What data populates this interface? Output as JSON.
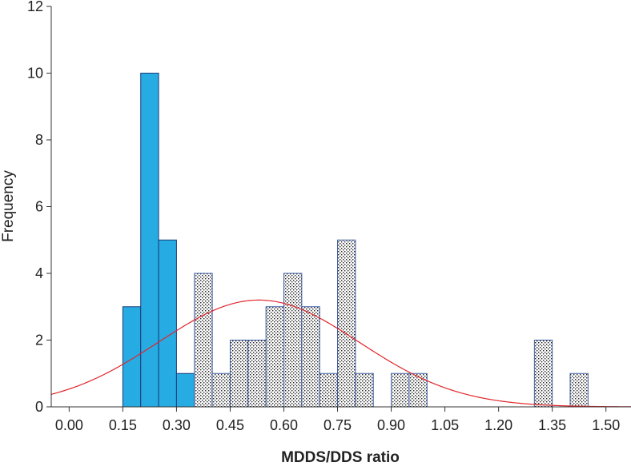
{
  "chart_data": {
    "type": "bar",
    "xlabel": "MDDS/DDS ratio",
    "ylabel": "Frequency",
    "xlim": [
      -0.05,
      1.57
    ],
    "ylim": [
      0,
      12
    ],
    "bin_width": 0.05,
    "x_ticks": [
      "0.00",
      "0.15",
      "0.30",
      "0.45",
      "0.60",
      "0.75",
      "0.90",
      "1.05",
      "1.20",
      "1.35",
      "1.50"
    ],
    "y_ticks": [
      "0",
      "2",
      "4",
      "6",
      "8",
      "10",
      "12"
    ],
    "grid": false,
    "series": [
      {
        "style": "solid",
        "color": "#26ace2",
        "bins": [
          {
            "x0": 0.15,
            "x1": 0.2,
            "count": 3
          },
          {
            "x0": 0.2,
            "x1": 0.25,
            "count": 10
          },
          {
            "x0": 0.25,
            "x1": 0.3,
            "count": 5
          },
          {
            "x0": 0.3,
            "x1": 0.35,
            "count": 1
          }
        ]
      },
      {
        "style": "stippled",
        "color": "#3a5aa0",
        "bins": [
          {
            "x0": 0.35,
            "x1": 0.4,
            "count": 4
          },
          {
            "x0": 0.4,
            "x1": 0.45,
            "count": 1
          },
          {
            "x0": 0.45,
            "x1": 0.5,
            "count": 2
          },
          {
            "x0": 0.5,
            "x1": 0.55,
            "count": 2
          },
          {
            "x0": 0.55,
            "x1": 0.6,
            "count": 3
          },
          {
            "x0": 0.6,
            "x1": 0.65,
            "count": 4
          },
          {
            "x0": 0.65,
            "x1": 0.7,
            "count": 3
          },
          {
            "x0": 0.7,
            "x1": 0.75,
            "count": 1
          },
          {
            "x0": 0.75,
            "x1": 0.8,
            "count": 5
          },
          {
            "x0": 0.8,
            "x1": 0.85,
            "count": 1
          },
          {
            "x0": 0.9,
            "x1": 0.95,
            "count": 1
          },
          {
            "x0": 0.95,
            "x1": 1.0,
            "count": 1
          },
          {
            "x0": 1.3,
            "x1": 1.35,
            "count": 2
          },
          {
            "x0": 1.4,
            "x1": 1.45,
            "count": 1
          }
        ]
      }
    ],
    "normal_curve": {
      "color": "#e0262b",
      "mean": 0.53,
      "sd": 0.28,
      "peak": 3.2
    }
  }
}
